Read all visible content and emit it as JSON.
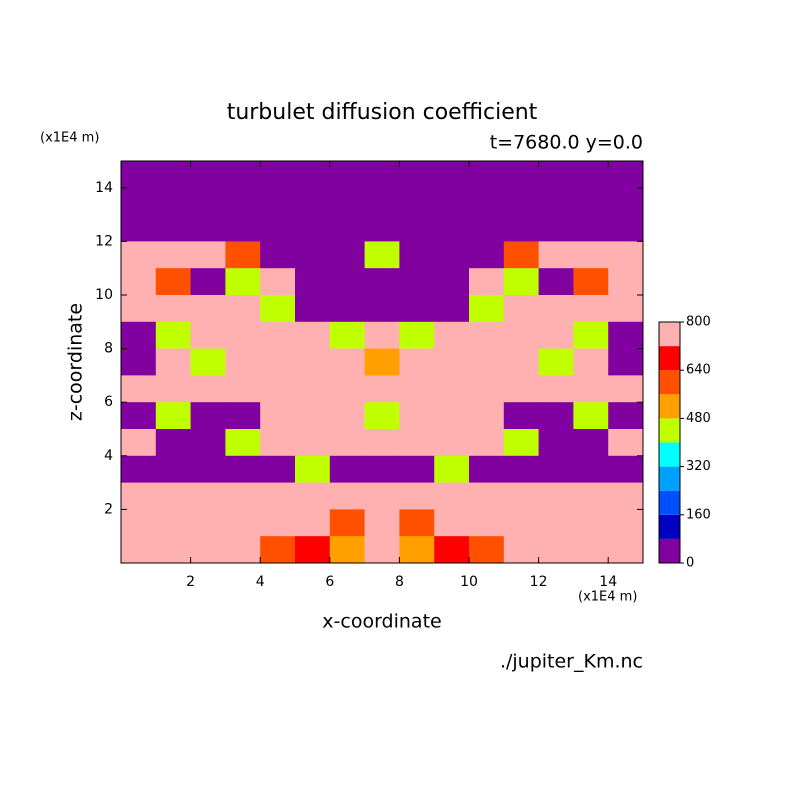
{
  "chart_data": {
    "type": "contour",
    "title": "turbulet diffusion coefficient",
    "subtitle": "t=7680.0 y=0.0",
    "xlabel": "x-coordinate",
    "ylabel": "z-coordinate",
    "xunit": "(x1E4 m)",
    "yunit": "(x1E4 m)",
    "source": "./jupiter_Km.nc",
    "xlim": [
      0,
      15
    ],
    "ylim": [
      0,
      15
    ],
    "xticks": [
      2,
      4,
      6,
      8,
      10,
      12,
      14
    ],
    "yticks": [
      2,
      4,
      6,
      8,
      10,
      12,
      14
    ],
    "x": [
      0.5,
      1.5,
      2.5,
      3.5,
      4.5,
      5.5,
      6.5,
      7.5,
      8.5,
      9.5,
      10.5,
      11.5,
      12.5,
      13.5,
      14.5
    ],
    "y": [
      14.5,
      13.5,
      12.5,
      11.5,
      10.5,
      9.5,
      8.5,
      7.5,
      6.5,
      5.5,
      4.5,
      3.5,
      2.5,
      1.5,
      0.5
    ],
    "z": [
      [
        40,
        40,
        40,
        40,
        40,
        40,
        40,
        40,
        40,
        40,
        40,
        40,
        40,
        40,
        40
      ],
      [
        40,
        40,
        40,
        40,
        40,
        40,
        40,
        40,
        40,
        40,
        40,
        40,
        40,
        40,
        40
      ],
      [
        40,
        40,
        40,
        40,
        40,
        40,
        40,
        40,
        40,
        40,
        40,
        40,
        40,
        40,
        40
      ],
      [
        720,
        720,
        720,
        560,
        40,
        40,
        40,
        400,
        40,
        40,
        40,
        560,
        720,
        720,
        720
      ],
      [
        720,
        560,
        40,
        400,
        720,
        40,
        40,
        40,
        40,
        40,
        720,
        400,
        40,
        560,
        720
      ],
      [
        720,
        720,
        720,
        720,
        400,
        40,
        40,
        40,
        40,
        40,
        400,
        720,
        720,
        720,
        720
      ],
      [
        40,
        400,
        720,
        720,
        720,
        720,
        400,
        720,
        400,
        720,
        720,
        720,
        720,
        400,
        40
      ],
      [
        40,
        720,
        400,
        720,
        720,
        720,
        720,
        480,
        720,
        720,
        720,
        720,
        400,
        720,
        40
      ],
      [
        720,
        720,
        720,
        720,
        720,
        720,
        720,
        720,
        720,
        720,
        720,
        720,
        720,
        720,
        720
      ],
      [
        40,
        400,
        40,
        40,
        720,
        720,
        720,
        400,
        720,
        720,
        720,
        40,
        40,
        400,
        40
      ],
      [
        720,
        40,
        40,
        400,
        720,
        720,
        720,
        720,
        720,
        720,
        720,
        400,
        40,
        40,
        720
      ],
      [
        40,
        40,
        40,
        40,
        40,
        400,
        40,
        40,
        40,
        400,
        40,
        40,
        40,
        40,
        40
      ],
      [
        720,
        720,
        720,
        720,
        720,
        720,
        720,
        720,
        720,
        720,
        720,
        720,
        720,
        720,
        720
      ],
      [
        720,
        720,
        720,
        720,
        720,
        720,
        560,
        720,
        560,
        720,
        720,
        720,
        720,
        720,
        720
      ],
      [
        720,
        720,
        720,
        720,
        560,
        640,
        480,
        720,
        480,
        640,
        560,
        720,
        720,
        720,
        720
      ]
    ],
    "levels": [
      0,
      80,
      160,
      240,
      320,
      400,
      480,
      560,
      640,
      720,
      800
    ],
    "colors": [
      "#8000a0",
      "#0000c0",
      "#0050ff",
      "#00a0ff",
      "#00ffff",
      "#c0ff00",
      "#ffa000",
      "#ff5000",
      "#ff0000",
      "#ffb0b0"
    ],
    "cbar_ticks": [
      0,
      160,
      320,
      480,
      640,
      800
    ]
  }
}
